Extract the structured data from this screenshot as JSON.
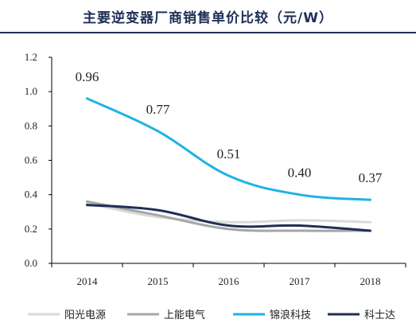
{
  "title": "主要逆变器厂商销售单价比较（元/W）",
  "colors": {
    "axis": "#000000",
    "title": "#1e2f56"
  },
  "chart_data": {
    "type": "line",
    "title": "主要逆变器厂商销售单价比较（元/W）",
    "xlabel": "",
    "ylabel": "",
    "x": [
      "2014",
      "2015",
      "2016",
      "2017",
      "2018"
    ],
    "ylim": [
      0,
      1.2
    ],
    "yticks": [
      "0.0",
      "0.2",
      "0.4",
      "0.6",
      "0.8",
      "1.0",
      "1.2"
    ],
    "grid": false,
    "legend_position": "bottom",
    "series": [
      {
        "name": "阳光电源",
        "color": "#d9d9d9",
        "values": [
          0.35,
          0.27,
          0.24,
          0.25,
          0.24
        ]
      },
      {
        "name": "上能电气",
        "color": "#a6a6a6",
        "values": [
          0.36,
          0.28,
          0.2,
          0.19,
          0.19
        ]
      },
      {
        "name": "锦浪科技",
        "color": "#1fb3e5",
        "values": [
          0.96,
          0.77,
          0.51,
          0.4,
          0.37
        ],
        "labels": [
          "0.96",
          "0.77",
          "0.51",
          "0.40",
          "0.37"
        ]
      },
      {
        "name": "科士达",
        "color": "#1e2f56",
        "values": [
          0.34,
          0.31,
          0.22,
          0.22,
          0.19
        ]
      }
    ]
  }
}
